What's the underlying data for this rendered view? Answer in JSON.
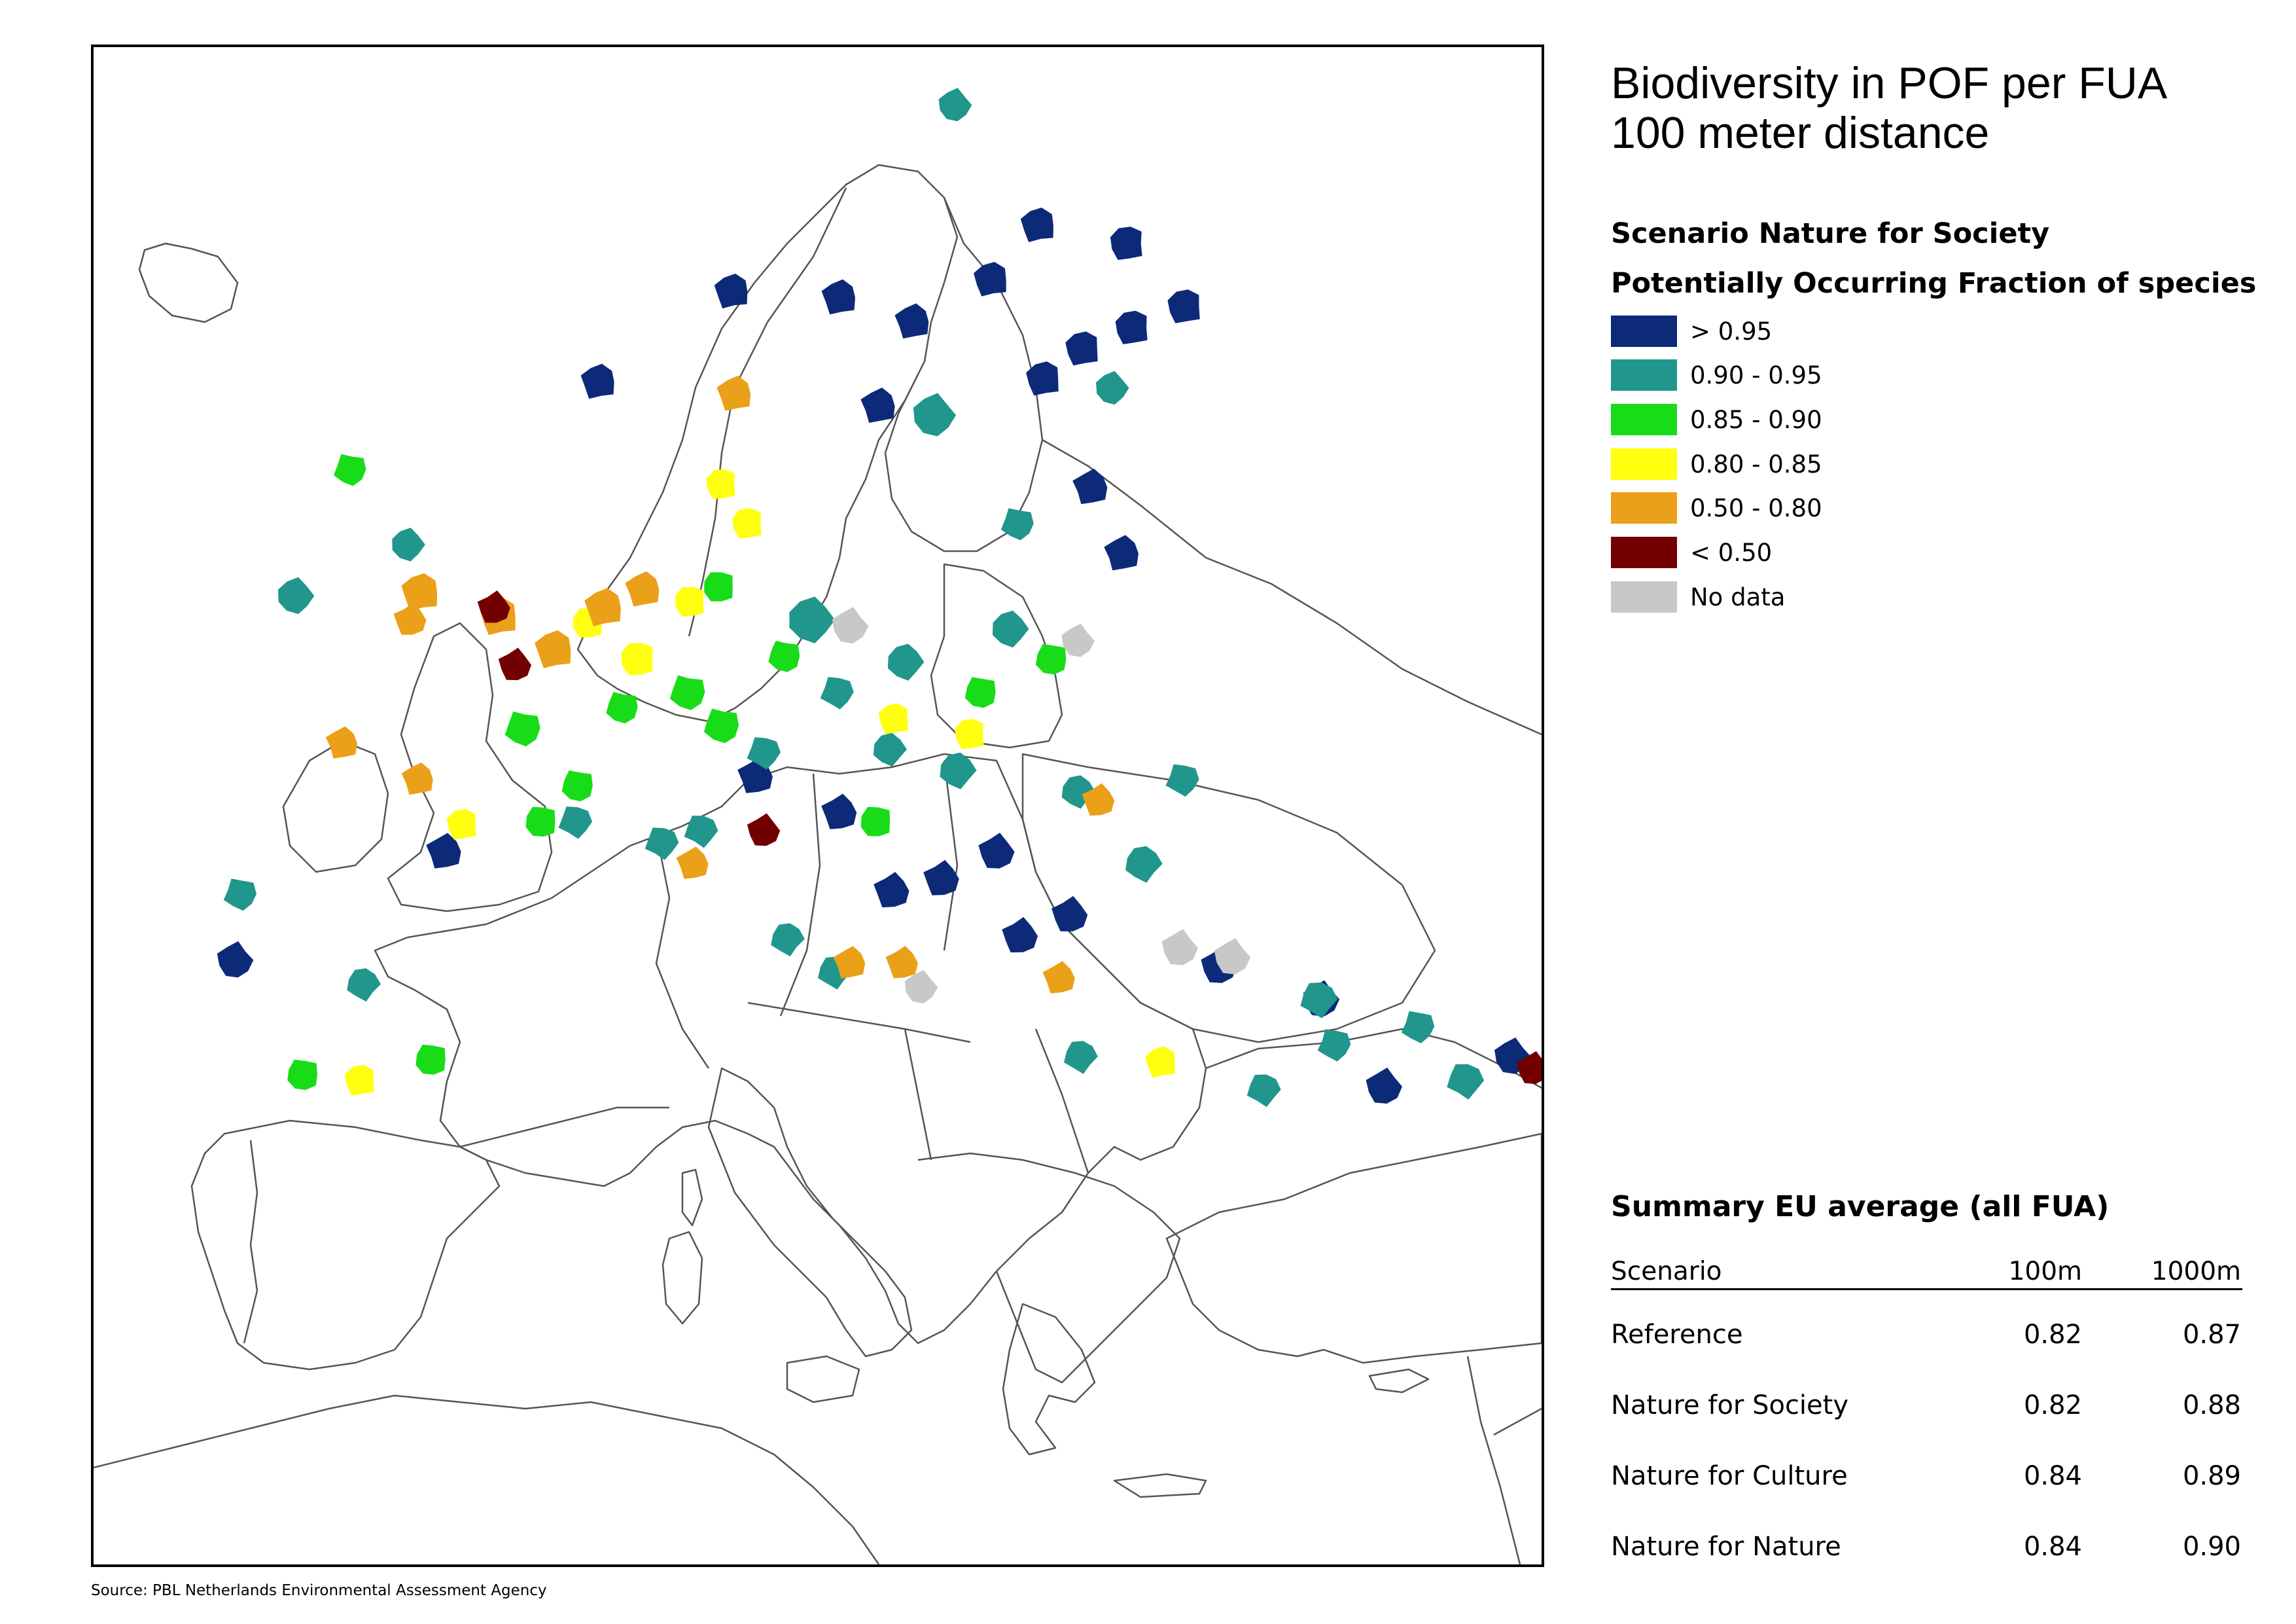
{
  "title_line1": "Biodiversity in POF per FUA",
  "title_line2": "100 meter distance",
  "scenario_label": "Scenario Nature for Society",
  "legend_title": "Potentially Occurring Fraction of species",
  "legend": [
    {
      "label": "> 0.95",
      "color": "#0d2a78"
    },
    {
      "label": "0.90 - 0.95",
      "color": "#21968c"
    },
    {
      "label": "0.85 - 0.90",
      "color": "#19dc19"
    },
    {
      "label": "0.80 - 0.85",
      "color": "#ffff0f"
    },
    {
      "label": "0.50 - 0.80",
      "color": "#eba019"
    },
    {
      "label": "< 0.50",
      "color": "#730000"
    },
    {
      "label": "No data",
      "color": "#c8c8c8"
    }
  ],
  "summary": {
    "title": "Summary EU average (all FUA)",
    "headers": {
      "scenario": "Scenario",
      "col1": "100m",
      "col2": "1000m"
    },
    "rows": [
      {
        "scenario": "Reference",
        "v100": "0.82",
        "v1000": "0.87"
      },
      {
        "scenario": "Nature for Society",
        "v100": "0.82",
        "v1000": "0.88"
      },
      {
        "scenario": "Nature for Culture",
        "v100": "0.84",
        "v1000": "0.89"
      },
      {
        "scenario": "Nature for Nature",
        "v100": "0.84",
        "v1000": "0.90"
      }
    ]
  },
  "source": "Source: PBL Netherlands Environmental Assessment Agency",
  "map": {
    "border_color": "#555555",
    "fua": [
      {
        "c": 0,
        "n": 12,
        "lon": 25.5,
        "lat": 65.0
      },
      {
        "c": 0,
        "n": 12,
        "lon": 25.7,
        "lat": 62.2
      },
      {
        "c": 0,
        "n": 12,
        "lon": 27.7,
        "lat": 62.9
      },
      {
        "c": 0,
        "n": 12,
        "lon": 23.8,
        "lat": 61.5
      },
      {
        "c": 0,
        "n": 12,
        "lon": 22.3,
        "lat": 60.5
      },
      {
        "c": 0,
        "n": 12,
        "lon": 20.3,
        "lat": 63.8
      },
      {
        "c": 0,
        "n": 12,
        "lon": 22.1,
        "lat": 65.6
      },
      {
        "c": 0,
        "n": 12,
        "lon": 10.4,
        "lat": 63.4
      },
      {
        "c": 0,
        "n": 12,
        "lon": 5.3,
        "lat": 60.4
      },
      {
        "c": 0,
        "n": 12,
        "lon": 14.5,
        "lat": 63.2
      },
      {
        "c": 0,
        "n": 12,
        "lon": 17.3,
        "lat": 62.4
      },
      {
        "c": 0,
        "n": 12,
        "lon": 16.0,
        "lat": 59.6
      },
      {
        "c": 0,
        "n": 12,
        "lon": 25.3,
        "lat": 54.7
      },
      {
        "c": 0,
        "n": 12,
        "lon": 24.1,
        "lat": 56.9
      },
      {
        "c": 0,
        "n": 12,
        "lon": -0.6,
        "lat": 44.8
      },
      {
        "c": 0,
        "n": 12,
        "lon": 11.3,
        "lat": 47.3
      },
      {
        "c": 0,
        "n": 12,
        "lon": 14.5,
        "lat": 46.1
      },
      {
        "c": 0,
        "n": 12,
        "lon": 16.5,
        "lat": 43.5
      },
      {
        "c": 0,
        "n": 12,
        "lon": 18.4,
        "lat": 43.9
      },
      {
        "c": 0,
        "n": 12,
        "lon": 21.4,
        "lat": 42.0
      },
      {
        "c": 0,
        "n": 12,
        "lon": 23.3,
        "lat": 42.7
      },
      {
        "c": 0,
        "n": 12,
        "lon": 20.5,
        "lat": 44.8
      },
      {
        "c": 0,
        "n": 12,
        "lon": 29.0,
        "lat": 41.0
      },
      {
        "c": 0,
        "n": 12,
        "lon": 35.3,
        "lat": 37.0
      },
      {
        "c": 0,
        "n": 12,
        "lon": 32.9,
        "lat": 39.9
      },
      {
        "c": 0,
        "n": 12,
        "lon": -8.6,
        "lat": 41.2
      },
      {
        "c": 0,
        "n": 12,
        "lon": 40.2,
        "lat": 38.0
      },
      {
        "c": 1,
        "n": 14,
        "lon": -21.9,
        "lat": 64.1
      },
      {
        "c": 1,
        "n": 10,
        "lon": 18.9,
        "lat": 69.6
      },
      {
        "c": 1,
        "n": 16,
        "lon": 18.1,
        "lat": 59.3
      },
      {
        "c": 1,
        "n": 10,
        "lon": 24.9,
        "lat": 60.2
      },
      {
        "c": 1,
        "n": 12,
        "lon": -6.3,
        "lat": 53.3
      },
      {
        "c": 1,
        "n": 10,
        "lon": -2.0,
        "lat": 55.0
      },
      {
        "c": 1,
        "n": 18,
        "lon": 13.4,
        "lat": 52.5
      },
      {
        "c": 1,
        "n": 12,
        "lon": 21.0,
        "lat": 52.2
      },
      {
        "c": 1,
        "n": 12,
        "lon": 17.0,
        "lat": 51.1
      },
      {
        "c": 1,
        "n": 10,
        "lon": 16.4,
        "lat": 48.2
      },
      {
        "c": 1,
        "n": 12,
        "lon": 19.0,
        "lat": 47.5
      },
      {
        "c": 1,
        "n": 10,
        "lon": 23.6,
        "lat": 46.8
      },
      {
        "c": 1,
        "n": 12,
        "lon": 26.1,
        "lat": 44.4
      },
      {
        "c": 1,
        "n": 10,
        "lon": -3.7,
        "lat": 40.4
      },
      {
        "c": 1,
        "n": 10,
        "lon": 12.5,
        "lat": 41.9
      },
      {
        "c": 1,
        "n": 10,
        "lon": 14.3,
        "lat": 40.8
      },
      {
        "c": 1,
        "n": 10,
        "lon": 23.7,
        "lat": 38.0
      },
      {
        "c": 1,
        "n": 12,
        "lon": 32.8,
        "lat": 39.9
      },
      {
        "c": 1,
        "n": 10,
        "lon": 30.7,
        "lat": 36.9
      },
      {
        "c": 1,
        "n": 12,
        "lon": 38.4,
        "lat": 37.2
      },
      {
        "c": 1,
        "n": 10,
        "lon": 9.2,
        "lat": 45.5
      },
      {
        "c": 1,
        "n": 10,
        "lon": 7.7,
        "lat": 45.1
      },
      {
        "c": 1,
        "n": 10,
        "lon": 4.4,
        "lat": 45.8
      },
      {
        "c": 1,
        "n": 10,
        "lon": 11.6,
        "lat": 48.1
      },
      {
        "c": 1,
        "n": 10,
        "lon": 14.4,
        "lat": 50.1
      },
      {
        "c": 1,
        "n": 10,
        "lon": 27.6,
        "lat": 47.2
      },
      {
        "c": 1,
        "n": 10,
        "lon": 33.4,
        "lat": 38.4
      },
      {
        "c": 1,
        "n": 10,
        "lon": 36.6,
        "lat": 39.0
      },
      {
        "c": 1,
        "n": 10,
        "lon": -8.4,
        "lat": 43.4
      },
      {
        "c": 1,
        "n": 10,
        "lon": 21.3,
        "lat": 55.7
      },
      {
        "c": 2,
        "n": 10,
        "lon": -4.2,
        "lat": 57.5
      },
      {
        "c": 2,
        "n": 12,
        "lon": 2.4,
        "lat": 48.9
      },
      {
        "c": 2,
        "n": 12,
        "lon": 8.7,
        "lat": 50.1
      },
      {
        "c": 2,
        "n": 12,
        "lon": 10.0,
        "lat": 49.0
      },
      {
        "c": 2,
        "n": 10,
        "lon": 6.2,
        "lat": 49.6
      },
      {
        "c": 2,
        "n": 10,
        "lon": 12.4,
        "lat": 51.3
      },
      {
        "c": 2,
        "n": 10,
        "lon": 4.5,
        "lat": 47.0
      },
      {
        "c": 2,
        "n": 10,
        "lon": 19.9,
        "lat": 50.1
      },
      {
        "c": 2,
        "n": 10,
        "lon": 22.6,
        "lat": 51.2
      },
      {
        "c": 2,
        "n": 10,
        "lon": -6.0,
        "lat": 37.4
      },
      {
        "c": 2,
        "n": 10,
        "lon": -1.1,
        "lat": 37.9
      },
      {
        "c": 2,
        "n": 10,
        "lon": 3.1,
        "lat": 45.8
      },
      {
        "c": 2,
        "n": 10,
        "lon": 15.9,
        "lat": 45.8
      },
      {
        "c": 2,
        "n": 10,
        "lon": 9.9,
        "lat": 53.6
      },
      {
        "c": 3,
        "n": 10,
        "lon": 4.9,
        "lat": 52.4
      },
      {
        "c": 3,
        "n": 12,
        "lon": 6.8,
        "lat": 51.2
      },
      {
        "c": 3,
        "n": 10,
        "lon": 8.8,
        "lat": 53.1
      },
      {
        "c": 3,
        "n": 10,
        "lon": 11.0,
        "lat": 55.7
      },
      {
        "c": 3,
        "n": 10,
        "lon": 10.0,
        "lat": 57.0
      },
      {
        "c": 3,
        "n": 10,
        "lon": 19.5,
        "lat": 48.7
      },
      {
        "c": 3,
        "n": 10,
        "lon": 0.1,
        "lat": 45.7
      },
      {
        "c": 3,
        "n": 10,
        "lon": -3.8,
        "lat": 37.2
      },
      {
        "c": 3,
        "n": 10,
        "lon": 16.6,
        "lat": 49.2
      },
      {
        "c": 3,
        "n": 10,
        "lon": 26.8,
        "lat": 37.8
      },
      {
        "c": 4,
        "n": 14,
        "lon": 1.5,
        "lat": 52.6
      },
      {
        "c": 4,
        "n": 14,
        "lon": -1.5,
        "lat": 53.4
      },
      {
        "c": 4,
        "n": 14,
        "lon": 3.6,
        "lat": 51.5
      },
      {
        "c": 4,
        "n": 14,
        "lon": 5.5,
        "lat": 52.9
      },
      {
        "c": 4,
        "n": 12,
        "lon": 10.5,
        "lat": 60.0
      },
      {
        "c": 4,
        "n": 12,
        "lon": 7.0,
        "lat": 53.5
      },
      {
        "c": 4,
        "n": 10,
        "lon": -1.6,
        "lat": 47.2
      },
      {
        "c": 4,
        "n": 10,
        "lon": -4.5,
        "lat": 48.4
      },
      {
        "c": 4,
        "n": 10,
        "lon": 14.9,
        "lat": 41.1
      },
      {
        "c": 4,
        "n": 10,
        "lon": 8.9,
        "lat": 44.4
      },
      {
        "c": 4,
        "n": 10,
        "lon": 22.9,
        "lat": 40.6
      },
      {
        "c": 4,
        "n": 10,
        "lon": 16.9,
        "lat": 41.1
      },
      {
        "c": 4,
        "n": 10,
        "lon": 24.4,
        "lat": 46.5
      },
      {
        "c": 4,
        "n": 10,
        "lon": -1.9,
        "lat": 52.5
      },
      {
        "c": 5,
        "n": 10,
        "lon": 1.3,
        "lat": 52.9
      },
      {
        "c": 5,
        "n": 10,
        "lon": 2.1,
        "lat": 51.0
      },
      {
        "c": 5,
        "n": 10,
        "lon": 11.6,
        "lat": 45.5
      },
      {
        "c": 5,
        "n": 10,
        "lon": 41.0,
        "lat": 37.6
      },
      {
        "c": 6,
        "n": 12,
        "lon": 27.5,
        "lat": 41.6
      },
      {
        "c": 6,
        "n": 12,
        "lon": 29.5,
        "lat": 41.3
      },
      {
        "c": 6,
        "n": 12,
        "lon": 14.9,
        "lat": 52.3
      },
      {
        "c": 6,
        "n": 10,
        "lon": 23.6,
        "lat": 51.8
      },
      {
        "c": 6,
        "n": 10,
        "lon": 17.6,
        "lat": 40.3
      }
    ]
  }
}
